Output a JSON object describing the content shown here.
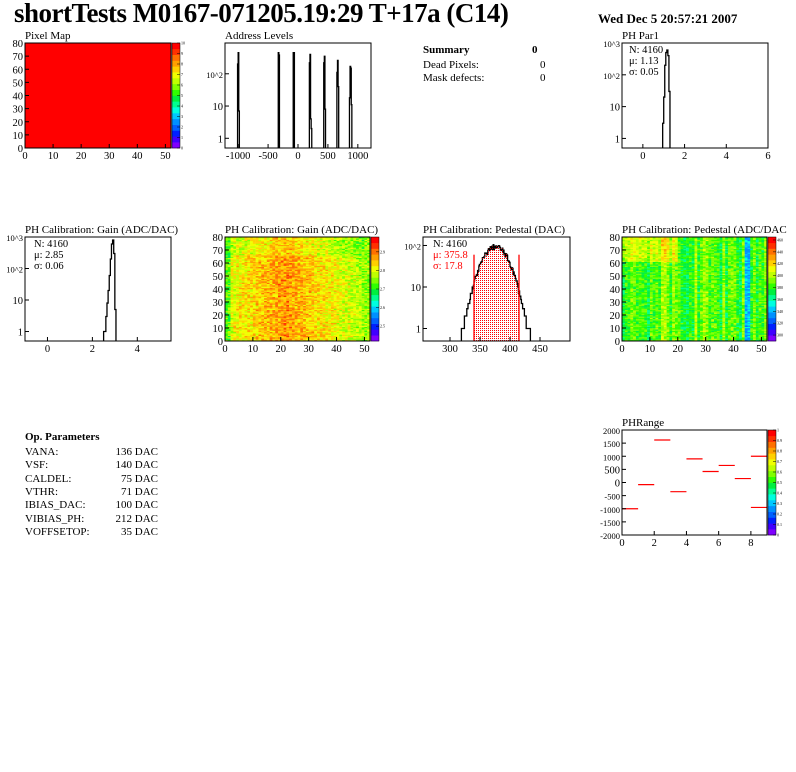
{
  "header": {
    "title": "shortTests M0167-071205.19:29 T+17a (C14)",
    "date": "Wed Dec  5 20:57:21 2007"
  },
  "summary": {
    "title": "Summary",
    "value": "0",
    "rows": [
      {
        "label": "Dead Pixels:",
        "value": "0"
      },
      {
        "label": "Mask defects:",
        "value": "0"
      }
    ]
  },
  "op_params": {
    "title": "Op. Parameters",
    "rows": [
      {
        "label": "VANA:",
        "value": "136 DAC"
      },
      {
        "label": "VSF:",
        "value": "140 DAC"
      },
      {
        "label": "CALDEL:",
        "value": "75 DAC"
      },
      {
        "label": "VTHR:",
        "value": "71 DAC"
      },
      {
        "label": "IBIAS_DAC:",
        "value": "100 DAC"
      },
      {
        "label": "VIBIAS_PH:",
        "value": "212 DAC"
      },
      {
        "label": "VOFFSETOP:",
        "value": "35 DAC"
      }
    ]
  },
  "colors": {
    "palette": [
      "#7f00ff",
      "#4000ff",
      "#0020ff",
      "#0060ff",
      "#0090ff",
      "#00c8ff",
      "#00ffe0",
      "#00ff90",
      "#00f040",
      "#30ff00",
      "#80ff00",
      "#c0ff00",
      "#f0ff00",
      "#ffd000",
      "#ffa000",
      "#ff7000",
      "#ff3000",
      "#ff0000"
    ],
    "fit": "#ff0000"
  },
  "chart_data": [
    {
      "id": "pixmap",
      "type": "heatmap",
      "title": "Pixel Map",
      "xlim": [
        0,
        52
      ],
      "ylim": [
        0,
        80
      ],
      "zlim": [
        0,
        10
      ],
      "xticks": [
        0,
        10,
        20,
        30,
        40,
        50
      ],
      "yticks": [
        0,
        10,
        20,
        30,
        40,
        50,
        60,
        70,
        80
      ],
      "zticks": [
        0,
        1,
        2,
        3,
        4,
        5,
        6,
        7,
        8,
        9,
        10
      ],
      "uniform_value": 10
    },
    {
      "id": "addr",
      "type": "bar",
      "title": "Address Levels",
      "xlim": [
        -1220,
        1220
      ],
      "ylim": [
        0.5,
        900
      ],
      "logy": true,
      "xticks": [
        -1000,
        -500,
        0,
        500,
        1000
      ],
      "yticks": [
        {
          "v": 1,
          "l": "1"
        },
        {
          "v": 10,
          "l": "10"
        },
        {
          "v": 100,
          "l": "10^2"
        }
      ],
      "binwidth": 10,
      "bins": [
        [
          -1010,
          200
        ],
        [
          -1000,
          450
        ],
        [
          -990,
          7
        ],
        [
          -330,
          450
        ],
        [
          -320,
          380
        ],
        [
          -80,
          450
        ],
        [
          -70,
          450
        ],
        [
          190,
          220
        ],
        [
          200,
          400
        ],
        [
          210,
          4
        ],
        [
          220,
          2
        ],
        [
          430,
          220
        ],
        [
          440,
          350
        ],
        [
          450,
          8
        ],
        [
          650,
          110
        ],
        [
          660,
          260
        ],
        [
          670,
          40
        ],
        [
          860,
          18
        ],
        [
          870,
          170
        ],
        [
          880,
          150
        ],
        [
          890,
          11
        ]
      ]
    },
    {
      "id": "par1",
      "type": "bar",
      "title": "PH Par1",
      "xlim": [
        -1,
        6
      ],
      "ylim": [
        0.5,
        1000
      ],
      "logy": true,
      "xticks": [
        0,
        2,
        4,
        6
      ],
      "yticks": [
        {
          "v": 1,
          "l": "1"
        },
        {
          "v": 10,
          "l": "10"
        },
        {
          "v": 100,
          "l": "10^2"
        },
        {
          "v": 1000,
          "l": "10^3"
        }
      ],
      "binwidth": 0.05,
      "bins": [
        [
          0.95,
          3
        ],
        [
          1.0,
          20
        ],
        [
          1.05,
          200
        ],
        [
          1.1,
          500
        ],
        [
          1.15,
          600
        ],
        [
          1.2,
          400
        ],
        [
          1.25,
          30
        ]
      ],
      "stats": {
        "N": "N: 4160",
        "mu": "μ: 1.13",
        "sigma": "σ: 0.05"
      }
    },
    {
      "id": "gain",
      "type": "bar",
      "title": "PH Calibration: Gain (ADC/DAC)",
      "xlim": [
        -1,
        5.5
      ],
      "ylim": [
        0.5,
        1000
      ],
      "logy": true,
      "xticks": [
        0,
        2,
        4
      ],
      "yticks": [
        {
          "v": 1,
          "l": "1"
        },
        {
          "v": 10,
          "l": "10"
        },
        {
          "v": 100,
          "l": "10^2"
        },
        {
          "v": 1000,
          "l": "10^3"
        }
      ],
      "binwidth": 0.05,
      "bins": [
        [
          2.5,
          1
        ],
        [
          2.55,
          1
        ],
        [
          2.6,
          3
        ],
        [
          2.65,
          8
        ],
        [
          2.7,
          20
        ],
        [
          2.75,
          60
        ],
        [
          2.8,
          200
        ],
        [
          2.85,
          600
        ],
        [
          2.9,
          800
        ],
        [
          2.95,
          300
        ],
        [
          3.0,
          5
        ]
      ],
      "stats": {
        "N": "N: 4160",
        "mu": "μ: 2.85",
        "sigma": "σ: 0.06"
      }
    },
    {
      "id": "gainmap",
      "type": "heatmap",
      "title": "PH Calibration: Gain (ADC/DAC)",
      "xlim": [
        0,
        52
      ],
      "ylim": [
        0,
        80
      ],
      "zlim": [
        2.42,
        2.98
      ],
      "xticks": [
        0,
        10,
        20,
        30,
        40,
        50
      ],
      "yticks": [
        0,
        10,
        20,
        30,
        40,
        50,
        60,
        70,
        80
      ],
      "zticks": [
        2.5,
        2.6,
        2.7,
        2.8,
        2.9
      ]
    },
    {
      "id": "ped",
      "type": "bar",
      "title": "PH Calibration: Pedestal (DAC)",
      "xlim": [
        255,
        500
      ],
      "ylim": [
        0.5,
        160
      ],
      "logy": true,
      "xticks": [
        300,
        350,
        400,
        450
      ],
      "yticks": [
        {
          "v": 1,
          "l": "1"
        },
        {
          "v": 10,
          "l": "10"
        },
        {
          "v": 100,
          "l": "10^2"
        }
      ],
      "entries": 4160,
      "mean": 375.8,
      "sigma": 17.8,
      "cuts": [
        340,
        415
      ],
      "stats": {
        "N": "N: 4160",
        "mu": "μ: 375.8",
        "sigma": "σ: 17.8"
      }
    },
    {
      "id": "pedmap",
      "type": "heatmap",
      "title": "PH Calibration: Pedestal (ADC/DAC",
      "xlim": [
        0,
        52
      ],
      "ylim": [
        0,
        80
      ],
      "zlim": [
        290,
        465
      ],
      "xticks": [
        0,
        10,
        20,
        30,
        40,
        50
      ],
      "yticks": [
        0,
        10,
        20,
        30,
        40,
        50,
        60,
        70,
        80
      ],
      "zticks": [
        300,
        320,
        340,
        360,
        380,
        400,
        420,
        440,
        460
      ]
    },
    {
      "id": "phrange",
      "type": "scatter",
      "title": "PHRange",
      "xlim": [
        0,
        9
      ],
      "ylim": [
        -2000,
        2000
      ],
      "zlim": [
        0,
        1
      ],
      "xticks": [
        0,
        2,
        4,
        6,
        8
      ],
      "yticks": [
        -2000,
        -1500,
        -1000,
        -500,
        0,
        500,
        1000,
        1500,
        2000
      ],
      "zticks": [
        0,
        0.1,
        0.2,
        0.3,
        0.4,
        0.5,
        0.6,
        0.7,
        0.8,
        0.9,
        1
      ],
      "segments": [
        [
          0,
          -1000
        ],
        [
          1,
          -80
        ],
        [
          2,
          1620
        ],
        [
          3,
          -350
        ],
        [
          4,
          900
        ],
        [
          5,
          420
        ],
        [
          6,
          650
        ],
        [
          7,
          150
        ],
        [
          8,
          1000
        ],
        [
          8,
          -950
        ]
      ]
    }
  ]
}
